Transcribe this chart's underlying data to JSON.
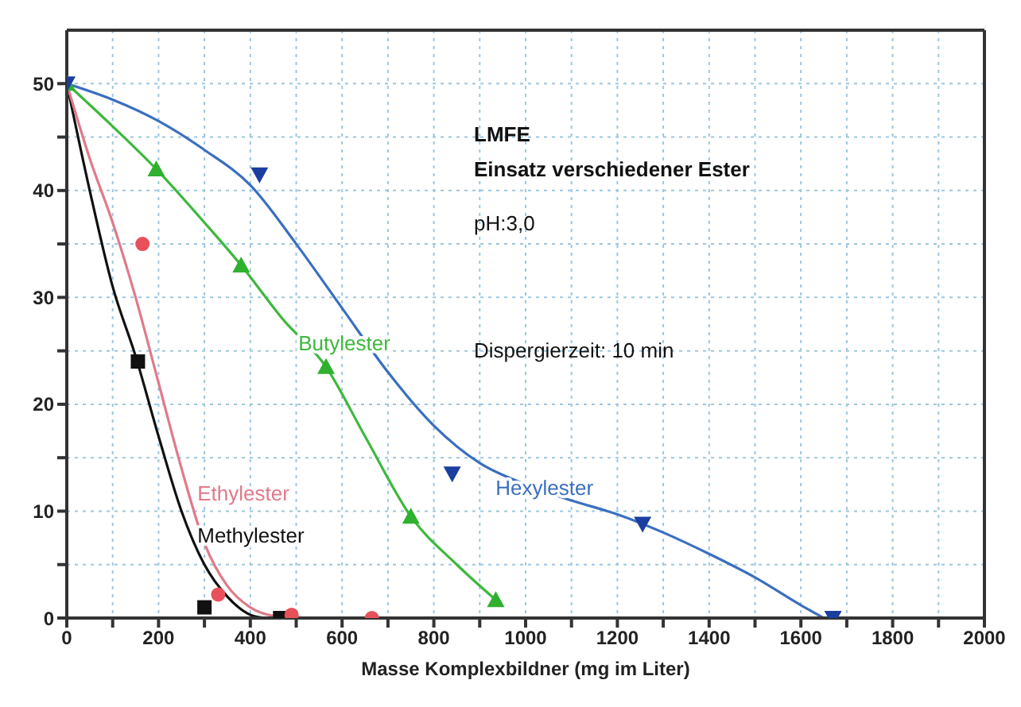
{
  "chart_data": {
    "type": "line",
    "title": "LMFE",
    "subtitle": "Einsatz verschiedener Ester",
    "xlabel": "Masse Komplexbildner (mg im Liter)",
    "annotations": [
      "pH:3,0",
      "Dispergierzeit: 10 min"
    ],
    "xlim": [
      0,
      2000
    ],
    "ylim": [
      0,
      55
    ],
    "xticks": [
      0,
      {
        "value": 100,
        "label": null
      },
      200,
      {
        "value": 300,
        "label": null
      },
      400,
      {
        "value": 500,
        "label": null
      },
      600,
      {
        "value": 700,
        "label": null
      },
      800,
      {
        "value": 900,
        "label": null
      },
      1000,
      {
        "value": 1100,
        "label": null
      },
      1200,
      {
        "value": 1300,
        "label": null
      },
      1400,
      {
        "value": 1500,
        "label": null
      },
      1600,
      {
        "value": 1700,
        "label": null
      },
      1800,
      {
        "value": 1900,
        "label": null
      },
      2000
    ],
    "yticks": [
      0,
      {
        "value": 5,
        "label": null
      },
      10,
      {
        "value": 15,
        "label": null
      },
      20,
      {
        "value": 25,
        "label": null
      },
      30,
      {
        "value": 35,
        "label": null
      },
      40,
      {
        "value": 45,
        "label": null
      },
      50
    ],
    "grid": true,
    "legend": false,
    "series": [
      {
        "name": "Methylester",
        "color": "#111111",
        "marker": "none",
        "x": [
          0,
          50,
          100,
          150,
          200,
          250,
          300,
          350,
          400,
          430
        ],
        "values": [
          50,
          40,
          31,
          24.5,
          17,
          10,
          5,
          2,
          0.3,
          0
        ]
      },
      {
        "name": "Ethylester",
        "color": "#e07a8a",
        "marker": "none",
        "x": [
          0,
          50,
          100,
          150,
          200,
          250,
          300,
          350,
          400,
          450,
          500
        ],
        "values": [
          50,
          43,
          37,
          30,
          22,
          14,
          7,
          3,
          1,
          0.2,
          0
        ]
      },
      {
        "name": "Butylester",
        "color": "#3db83d",
        "marker": "none",
        "x": [
          0,
          100,
          195,
          300,
          380,
          470,
          565,
          650,
          750,
          850,
          935
        ],
        "values": [
          50,
          46,
          42,
          37,
          33,
          28,
          23.5,
          17,
          9.5,
          5,
          1.7
        ]
      },
      {
        "name": "Hexylester",
        "color": "#3a6fc0",
        "marker": "none",
        "x": [
          0,
          100,
          200,
          300,
          400,
          500,
          600,
          700,
          800,
          900,
          1000,
          1100,
          1200,
          1300,
          1400,
          1500,
          1600,
          1650
        ],
        "values": [
          50,
          48.5,
          46.5,
          43.8,
          40.5,
          35,
          29,
          23,
          18,
          14.5,
          12.5,
          11,
          9.7,
          8,
          6,
          3.8,
          1.2,
          0
        ]
      },
      {
        "type": "scatter",
        "color": "#111111",
        "marker": "square",
        "x": [
          155,
          300,
          465
        ],
        "values": [
          24,
          1,
          0
        ]
      },
      {
        "type": "scatter",
        "color": "#e8505a",
        "marker": "circle",
        "x": [
          165,
          330,
          490,
          665
        ],
        "values": [
          35,
          2.2,
          0.3,
          0
        ]
      },
      {
        "type": "scatter",
        "color": "#2fb02f",
        "marker": "triangle",
        "x": [
          0,
          195,
          380,
          565,
          750,
          935
        ],
        "values": [
          50,
          42,
          33,
          23.5,
          9.5,
          1.7
        ]
      },
      {
        "type": "scatter",
        "color": "#1a3fa0",
        "marker": "triangle-down",
        "x": [
          0,
          420,
          840,
          1255,
          1670
        ],
        "values": [
          50,
          41.5,
          13.5,
          8.8,
          0
        ]
      }
    ]
  }
}
